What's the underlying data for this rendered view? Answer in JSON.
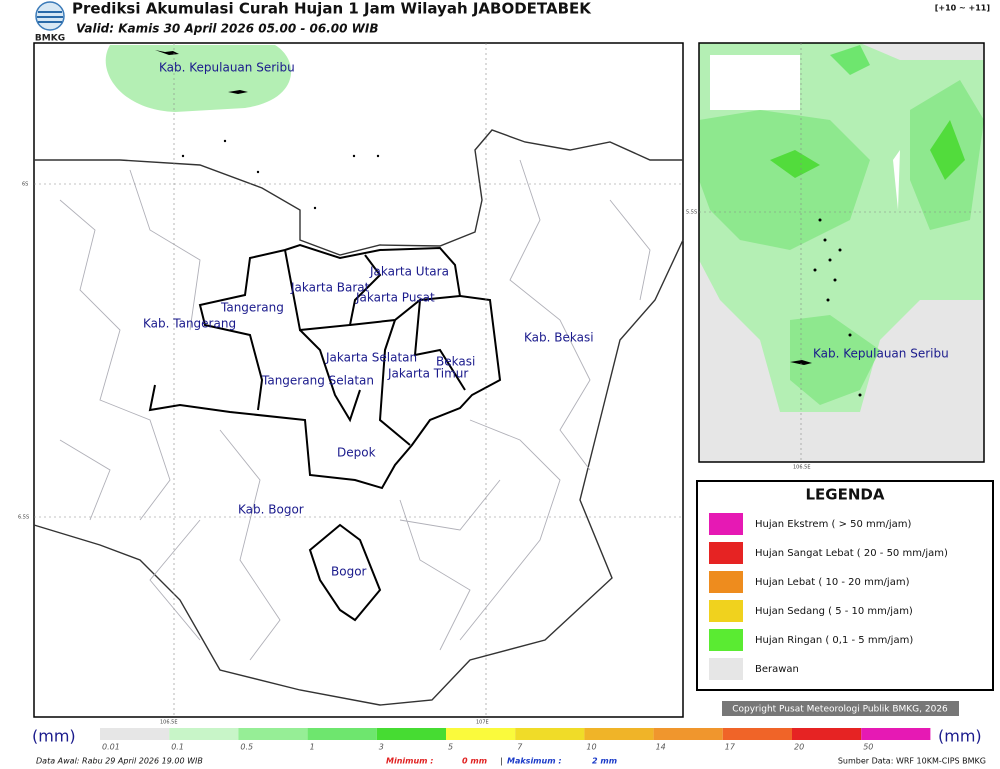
{
  "header": {
    "title": "Prediksi Akumulasi Curah Hujan 1 Jam Wilayah JABODETABEK",
    "subtitle": "Valid: Kamis 30 April 2026 05.00 - 06.00 WIB",
    "logo": "BMKG",
    "range": "[+10 ~ +11]"
  },
  "map": {
    "labels": [
      "Kab. Kepulauan Seribu",
      "Jakarta Utara",
      "Jakarta Barat",
      "Jakarta Pusat",
      "Tangerang",
      "Kab. Tangerang",
      "Jakarta Selatan",
      "Jakarta Timur",
      "Bekasi",
      "Kab. Bekasi",
      "Tangerang Selatan",
      "Depok",
      "Kab. Bogor",
      "Bogor"
    ],
    "lat_labels": [
      "6S",
      "6.5S"
    ],
    "lon_labels": [
      "106.5E",
      "107E"
    ]
  },
  "inset": {
    "label": "Kab. Kepulauan Seribu",
    "lat_label": "5.5S",
    "lon_label": "106.5E"
  },
  "legend": {
    "title": "LEGENDA",
    "items": [
      {
        "label": "Hujan Ekstrem ( > 50 mm/jam)",
        "color": "#e619b4"
      },
      {
        "label": "Hujan Sangat Lebat ( 20 - 50 mm/jam)",
        "color": "#e62323"
      },
      {
        "label": "Hujan Lebat ( 10 - 20 mm/jam)",
        "color": "#ee8c1e"
      },
      {
        "label": "Hujan Sedang ( 5 - 10 mm/jam)",
        "color": "#f0d21e"
      },
      {
        "label": "Hujan Ringan ( 0,1 - 5 mm/jam)",
        "color": "#5aeb32"
      },
      {
        "label": "Berawan",
        "color": "#e6e6e6"
      }
    ]
  },
  "copyright": "Copyright Pusat Meteorologi Publik BMKG, 2026",
  "colorbar": {
    "unit": "(mm)",
    "ticks": [
      "0.01",
      "0.1",
      "0.5",
      "1",
      "3",
      "5",
      "7",
      "10",
      "14",
      "17",
      "20",
      "50"
    ],
    "colors": [
      "#e6e6e6",
      "#c8f5c8",
      "#96ee96",
      "#6ee66e",
      "#46dc32",
      "#fafa3c",
      "#f0dc28",
      "#f0b428",
      "#f0962d",
      "#f06428",
      "#e62323",
      "#e619b4"
    ]
  },
  "footer": {
    "data_awal": "Data Awal: Rabu 29 April 2026 19.00 WIB",
    "min_label": "Minimum :",
    "min_value": "0 mm",
    "separator": "|",
    "max_label": "Maksimum :",
    "max_value": "2 mm",
    "source": "Sumber Data: WRF 10KM-CIPS BMKG"
  }
}
